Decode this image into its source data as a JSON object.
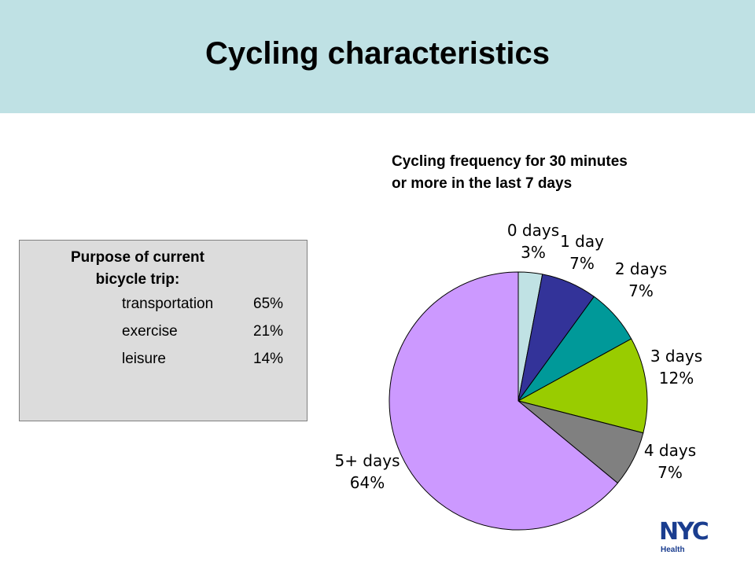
{
  "slide": {
    "title": "Cycling characteristics"
  },
  "purpose_box": {
    "heading_line1": "Purpose of current",
    "heading_line2": "bicycle trip:",
    "rows": [
      {
        "label": "transportation",
        "value": "65%"
      },
      {
        "label": "exercise",
        "value": "21%"
      },
      {
        "label": "leisure",
        "value": "14%"
      }
    ]
  },
  "chart_data": {
    "type": "pie",
    "title_line1": "Cycling frequency for 30 minutes",
    "title_line2": "or more in the last 7 days",
    "categories": [
      "0 days",
      "1 day",
      "2 days",
      "3 days",
      "4 days",
      "5+ days"
    ],
    "values": [
      3,
      7,
      7,
      12,
      7,
      64
    ],
    "value_labels": [
      "3%",
      "7%",
      "7%",
      "12%",
      "7%",
      "64%"
    ],
    "colors": [
      "#c0e2e4",
      "#333399",
      "#009999",
      "#99cc00",
      "#808080",
      "#cc99ff"
    ],
    "start_angle": "12 o'clock",
    "direction": "clockwise"
  },
  "logo": {
    "text": "NYC",
    "subtext": "Health",
    "color": "#1a3d8f"
  }
}
